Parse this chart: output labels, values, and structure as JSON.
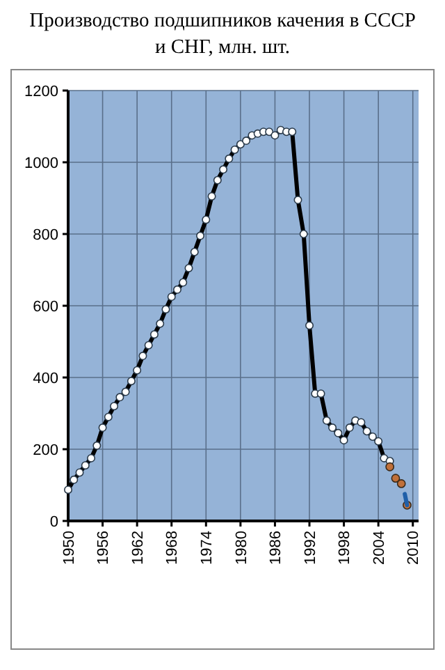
{
  "chart_data": {
    "type": "line",
    "title": "Производство подшипников качения в СССР\nи СНГ, млн. шт.",
    "xlim": [
      1950,
      2011
    ],
    "xticks": [
      1950,
      1956,
      1962,
      1968,
      1974,
      1980,
      1986,
      1992,
      1998,
      2004,
      2010
    ],
    "ylim": [
      0,
      1200
    ],
    "yticks": [
      0,
      200,
      400,
      600,
      800,
      1000,
      1200
    ],
    "grid": true,
    "marker": "circle",
    "series": [
      {
        "color": "#000000",
        "x": [
          1950,
          1951,
          1952,
          1953,
          1954,
          1955,
          1956,
          1957,
          1958,
          1959,
          1960,
          1961,
          1962,
          1963,
          1964,
          1965,
          1966,
          1967,
          1968,
          1969,
          1970,
          1971,
          1972,
          1973,
          1974,
          1975,
          1976,
          1977,
          1978,
          1979,
          1980,
          1981,
          1982,
          1983,
          1984,
          1985,
          1986,
          1987,
          1988,
          1989,
          1990,
          1991,
          1992,
          1993,
          1994,
          1995,
          1996,
          1997,
          1998,
          1999,
          2000,
          2001,
          2002,
          2003,
          2004,
          2005,
          2006
        ],
        "values": [
          87,
          115,
          135,
          155,
          175,
          210,
          260,
          290,
          320,
          345,
          360,
          390,
          420,
          460,
          490,
          520,
          550,
          590,
          625,
          645,
          665,
          705,
          750,
          795,
          840,
          905,
          950,
          980,
          1010,
          1035,
          1050,
          1060,
          1075,
          1080,
          1085,
          1085,
          1075,
          1090,
          1085,
          1085,
          895,
          800,
          545,
          355,
          355,
          280,
          260,
          245,
          225,
          260,
          280,
          275,
          250,
          235,
          222,
          175,
          167
        ]
      },
      {
        "type": "scatter",
        "color": "#c0703a",
        "x": [
          2006,
          2007,
          2008,
          2009
        ],
        "values": [
          151,
          119,
          104,
          44
        ]
      },
      {
        "type": "line",
        "color": "#1f5fa8",
        "marker": "none",
        "x": [
          2008.6,
          2009
        ],
        "values": [
          75,
          44
        ]
      }
    ]
  }
}
